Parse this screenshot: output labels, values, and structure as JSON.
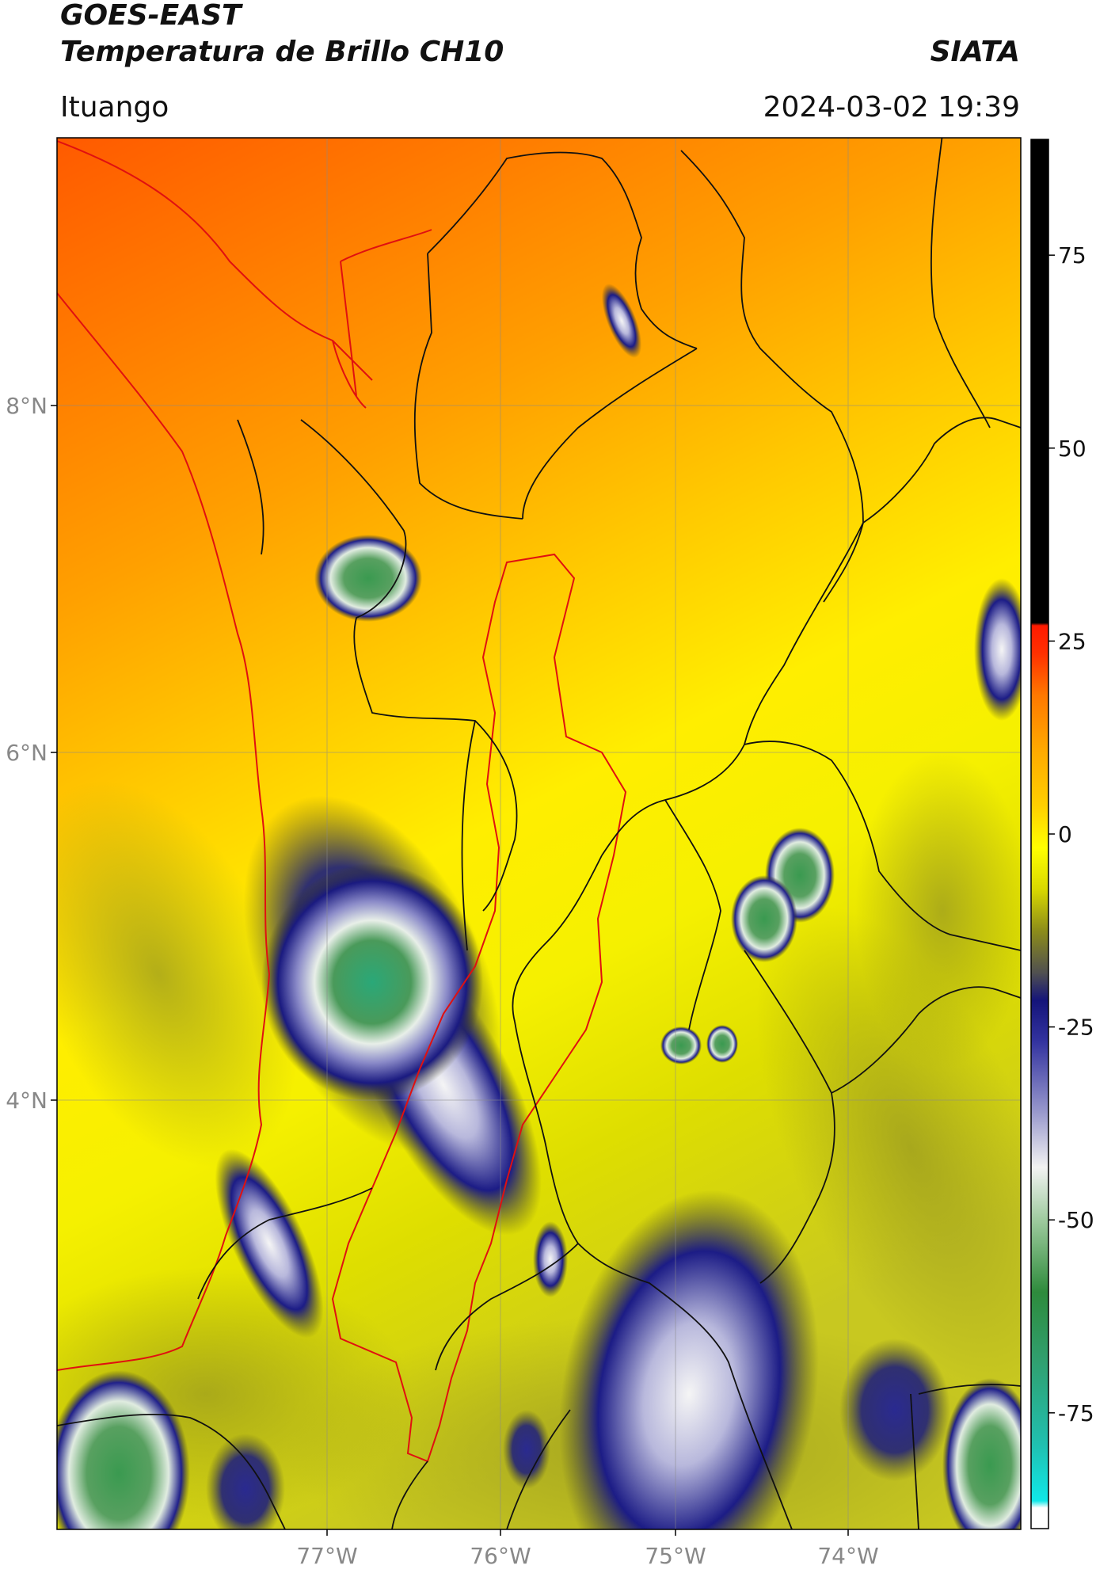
{
  "header": {
    "title_line1": "GOES-EAST",
    "title_line2": "Temperatura de Brillo CH10",
    "organization": "SIATA",
    "location": "Ituango",
    "datetime": "2024-03-02 19:39"
  },
  "map": {
    "lon_ticks": [
      "77°W",
      "76°W",
      "75°W",
      "74°W"
    ],
    "lat_ticks": [
      "8°N",
      "6°N",
      "4°N"
    ],
    "legend_colors": {
      "cold_cyan": "#20e0e0",
      "green": "#2e8b3c",
      "white": "#f2f2f2",
      "navy": "#14147a",
      "olive": "#8c8c1a",
      "yellow": "#ffff00",
      "orange": "#ff9a00",
      "red": "#ff1a00",
      "black": "#000000"
    }
  },
  "colorbar": {
    "tick_labels": [
      "75",
      "50",
      "25",
      "0",
      "-25",
      "-50",
      "-75"
    ],
    "tick_values": [
      75,
      50,
      25,
      0,
      -25,
      -50,
      -75
    ],
    "range": [
      -90,
      90
    ]
  }
}
